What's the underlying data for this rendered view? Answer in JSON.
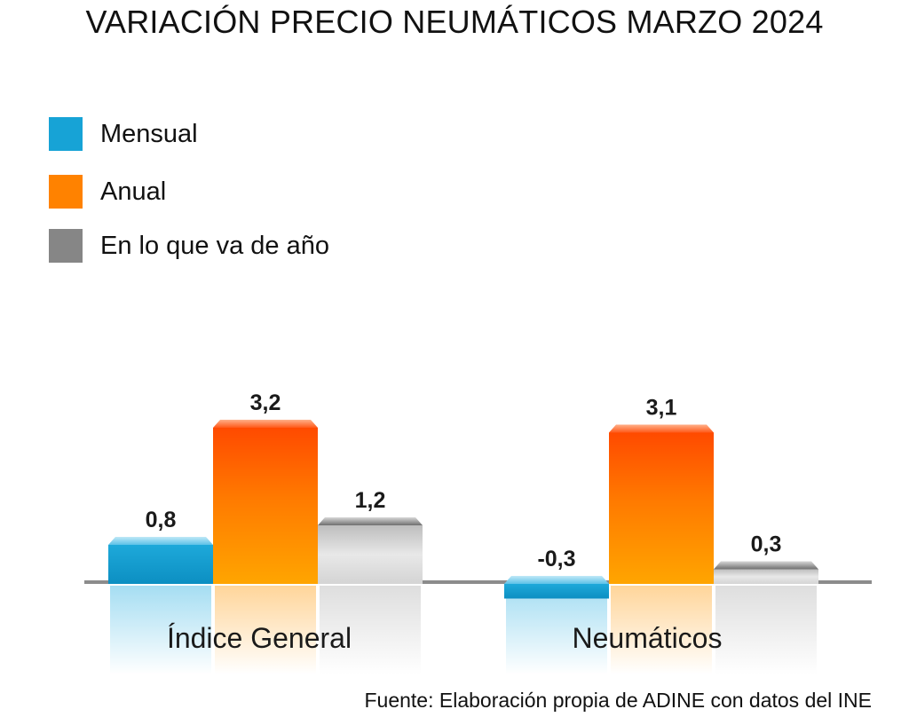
{
  "chart_data": {
    "type": "bar",
    "title": "VARIACIÓN PRECIO NEUMÁTICOS MARZO 2024",
    "categories": [
      "Índice General",
      "Neumáticos"
    ],
    "series": [
      {
        "name": "Mensual",
        "color": "#1ba6d6",
        "values": [
          0.8,
          -0.3
        ],
        "labels": [
          "0,8",
          "-0,3"
        ]
      },
      {
        "name": "Anual",
        "color": "#ff8a00",
        "values": [
          3.2,
          3.1
        ],
        "labels": [
          "3,2",
          "3,1"
        ]
      },
      {
        "name": "En lo que va de año",
        "color": "#8a8a8a",
        "values": [
          1.2,
          0.3
        ],
        "labels": [
          "1,2",
          "0,3"
        ]
      }
    ],
    "legend_position": "top-left",
    "grid": false,
    "source": "Fuente: Elaboración propia de ADINE con datos del INE"
  }
}
